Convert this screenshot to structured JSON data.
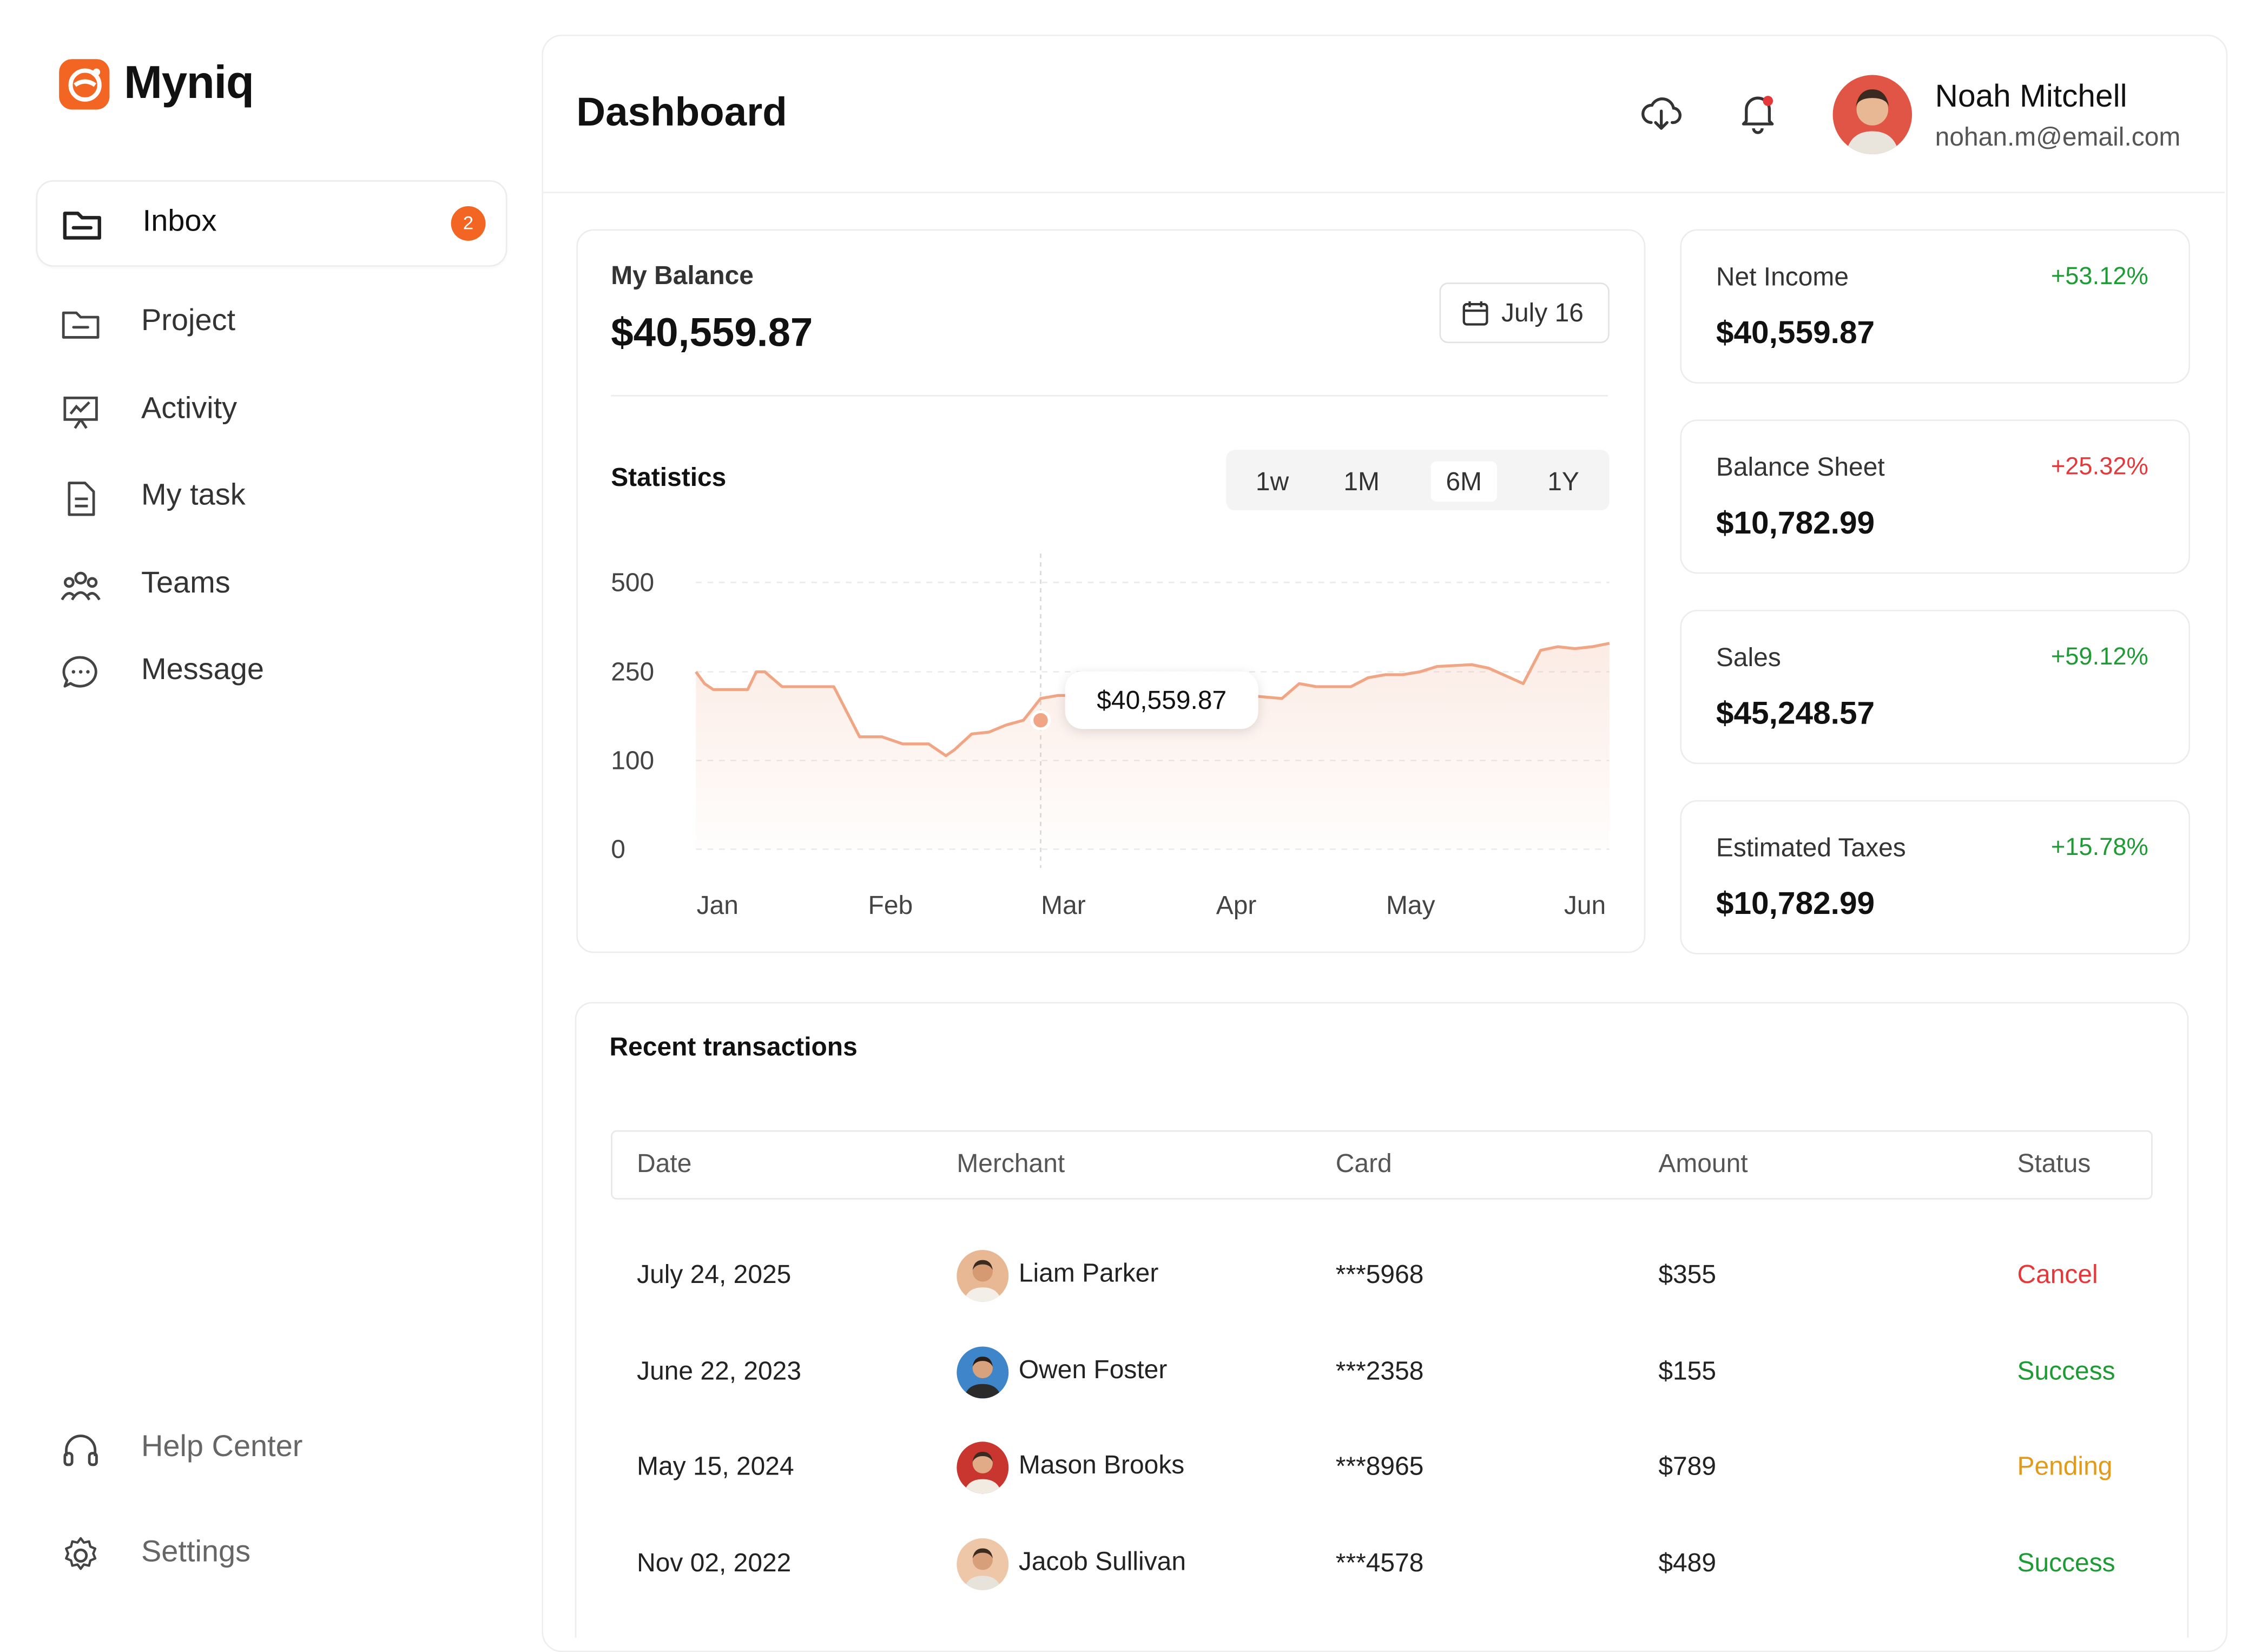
{
  "brand": {
    "name": "Myniq",
    "color": "#F26522"
  },
  "sidebar": {
    "items": [
      {
        "label": "Inbox",
        "icon": "folder-icon",
        "badge": "2",
        "active": true
      },
      {
        "label": "Project",
        "icon": "folder-minus-icon"
      },
      {
        "label": "Activity",
        "icon": "presentation-chart-icon"
      },
      {
        "label": "My task",
        "icon": "document-icon"
      },
      {
        "label": "Teams",
        "icon": "users-icon"
      },
      {
        "label": "Message",
        "icon": "chat-bubble-icon"
      }
    ],
    "bottom": [
      {
        "label": "Help Center",
        "icon": "headphones-icon"
      },
      {
        "label": "Settings",
        "icon": "gear-icon"
      }
    ]
  },
  "header": {
    "title": "Dashboard",
    "user": {
      "name": "Noah Mitchell",
      "email": "nohan.m@email.com"
    }
  },
  "balance": {
    "label": "My Balance",
    "value": "$40,559.87",
    "date": "July 16",
    "statistics_label": "Statistics",
    "ranges": [
      "1w",
      "1M",
      "6M",
      "1Y"
    ],
    "active_range": "6M",
    "tooltip": "$40,559.87"
  },
  "chart_data": {
    "type": "area",
    "x_tick_labels": [
      "Jan",
      "Feb",
      "Mar",
      "Apr",
      "May",
      "Jun"
    ],
    "y_tick_labels": [
      "500",
      "250",
      "100",
      "0"
    ],
    "ylim": [
      0,
      500
    ],
    "grid": true,
    "color": "#F0A685",
    "x": [
      0,
      0.05,
      0.1,
      0.2,
      0.3,
      0.35,
      0.4,
      0.5,
      0.6,
      0.8,
      0.95,
      1.0,
      1.08,
      1.2,
      1.35,
      1.45,
      1.5,
      1.6,
      1.7,
      1.8,
      1.9,
      2.0,
      2.1,
      2.2,
      2.3,
      2.45,
      2.6,
      2.9,
      3.0,
      3.2,
      3.4,
      3.5,
      3.6,
      3.8,
      3.9,
      4.0,
      4.1,
      4.2,
      4.3,
      4.5,
      4.6,
      4.8,
      4.9,
      5.0,
      5.1,
      5.2,
      5.3
    ],
    "values": [
      250,
      230,
      220,
      220,
      220,
      250,
      250,
      225,
      225,
      225,
      140,
      140,
      140,
      128,
      128,
      108,
      118,
      145,
      148,
      160,
      168,
      205,
      210,
      210,
      210,
      210,
      210,
      210,
      210,
      210,
      205,
      230,
      225,
      225,
      240,
      245,
      245,
      250,
      265,
      270,
      260,
      230,
      310,
      320,
      315,
      320,
      330
    ],
    "highlight": {
      "x": 2.0,
      "value": 168,
      "label": "$40,559.87"
    }
  },
  "kpis": [
    {
      "label": "Net Income",
      "value": "$40,559.87",
      "change": "+53.12%",
      "color": "#1E9B35"
    },
    {
      "label": "Balance Sheet",
      "value": "$10,782.99",
      "change": "+25.32%",
      "color": "#E5383B"
    },
    {
      "label": "Sales",
      "value": "$45,248.57",
      "change": "+59.12%",
      "color": "#1E9B35"
    },
    {
      "label": "Estimated Taxes",
      "value": "$10,782.99",
      "change": "+15.78%",
      "color": "#1E9B35"
    }
  ],
  "transactions": {
    "title": "Recent transactions",
    "columns": [
      "Date",
      "Merchant",
      "Card",
      "Amount",
      "Status"
    ],
    "rows": [
      {
        "date": "July 24, 2025",
        "merchant": "Liam Parker",
        "card": "***5968",
        "amount": "$355",
        "status": "Cancel",
        "status_color": "#E5383B",
        "avatar_bg": "#E8B894"
      },
      {
        "date": "June 22, 2023",
        "merchant": "Owen Foster",
        "card": "***2358",
        "amount": "$155",
        "status": "Success",
        "status_color": "#1E9B35",
        "avatar_bg": "#3E86C9"
      },
      {
        "date": "May 15, 2024",
        "merchant": "Mason Brooks",
        "card": "***8965",
        "amount": "$789",
        "status": "Pending",
        "status_color": "#E39A1B",
        "avatar_bg": "#C9362F"
      },
      {
        "date": "Nov 02, 2022",
        "merchant": "Jacob Sullivan",
        "card": "***4578",
        "amount": "$489",
        "status": "Success",
        "status_color": "#1E9B35",
        "avatar_bg": "#EDC7A8"
      }
    ]
  }
}
